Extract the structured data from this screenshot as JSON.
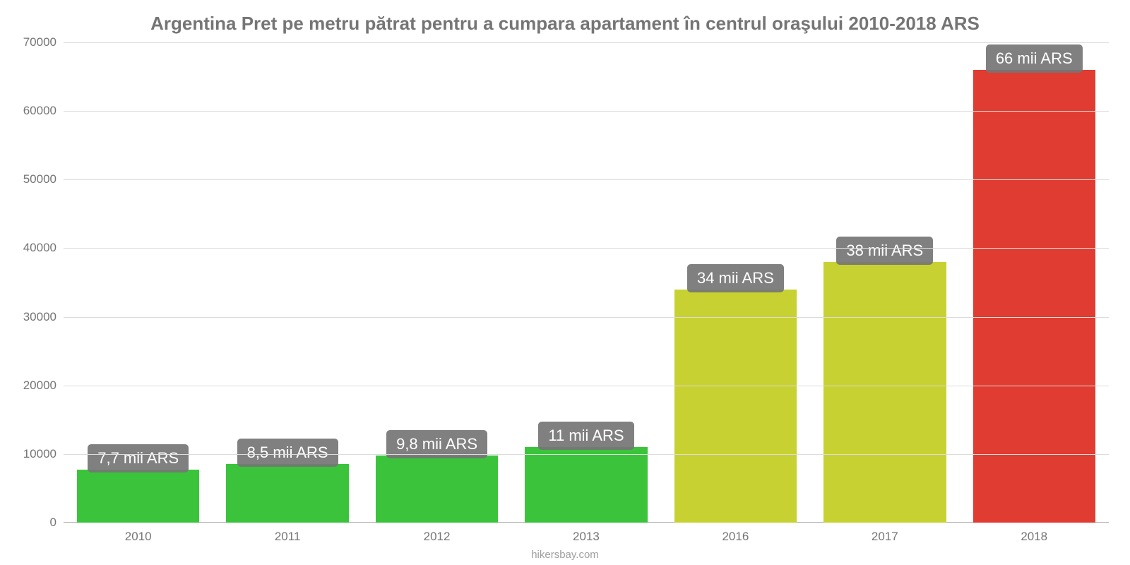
{
  "chart": {
    "type": "bar",
    "title": "Argentina Pret pe metru pătrat pentru a cumpara apartament în centrul oraşului 2010-2018 ARS",
    "title_color": "#757575",
    "title_fontsize": 26,
    "background_color": "#ffffff",
    "grid_color": "#dcdcdc",
    "axis_label_color": "#757575",
    "axis_label_fontsize": 17,
    "bar_label_bg": "rgba(117,117,117,0.92)",
    "bar_label_color": "#ffffff",
    "bar_label_fontsize": 22,
    "bar_width": 0.82,
    "ylim": [
      0,
      70000
    ],
    "ytick_step": 10000,
    "yticks": [
      {
        "v": 0,
        "label": "0"
      },
      {
        "v": 10000,
        "label": "10000"
      },
      {
        "v": 20000,
        "label": "20000"
      },
      {
        "v": 30000,
        "label": "30000"
      },
      {
        "v": 40000,
        "label": "40000"
      },
      {
        "v": 50000,
        "label": "50000"
      },
      {
        "v": 60000,
        "label": "60000"
      },
      {
        "v": 70000,
        "label": "70000"
      }
    ],
    "categories": [
      "2010",
      "2011",
      "2012",
      "2013",
      "2016",
      "2017",
      "2018"
    ],
    "values": [
      7700,
      8500,
      9800,
      11000,
      34000,
      38000,
      66000
    ],
    "value_labels": [
      "7,7 mii ARS",
      "8,5 mii ARS",
      "9,8 mii ARS",
      "11 mii ARS",
      "34 mii ARS",
      "38 mii ARS",
      "66 mii ARS"
    ],
    "bar_colors": [
      "#3bc43b",
      "#3bc43b",
      "#3bc43b",
      "#3bc43b",
      "#c8d132",
      "#c8d132",
      "#e03c31"
    ],
    "attribution": "hikersbay.com"
  }
}
